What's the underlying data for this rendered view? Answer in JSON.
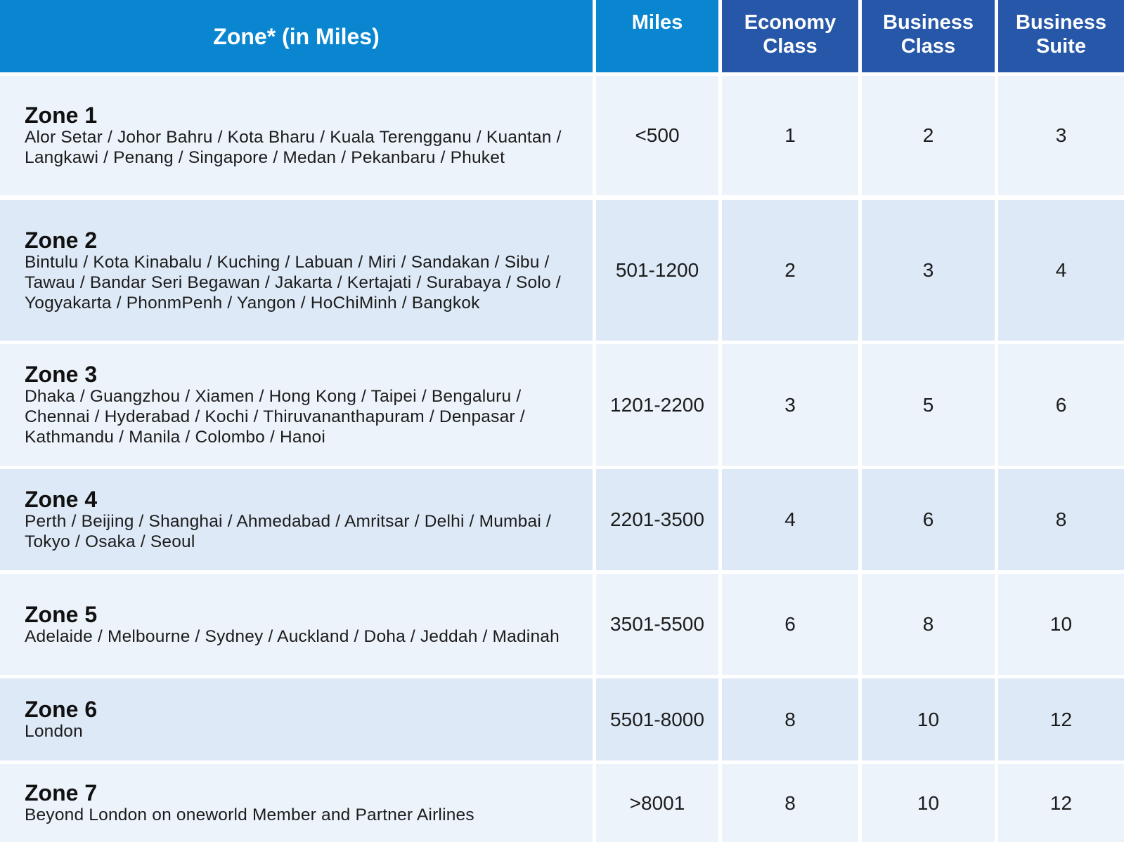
{
  "header": {
    "zone": "Zone* (in Miles)",
    "miles": "Miles",
    "economy": "Economy Class",
    "business_class": "Business Class",
    "business_suite": "Business Suite"
  },
  "rows": [
    {
      "zone": "Zone 1",
      "cities": "Alor Setar / Johor Bahru / Kota Bharu / Kuala Terengganu / Kuantan / Langkawi / Penang / Singapore / Medan / Pekanbaru / Phuket",
      "miles": "<500",
      "economy": "1",
      "business_class": "2",
      "business_suite": "3"
    },
    {
      "zone": "Zone 2",
      "cities": "Bintulu / Kota Kinabalu / Kuching / Labuan / Miri / Sandakan / Sibu / Tawau / Bandar Seri Begawan / Jakarta / Kertajati / Surabaya / Solo / Yogyakarta / PhonmPenh / Yangon / HoChiMinh / Bangkok",
      "miles": "501-1200",
      "economy": "2",
      "business_class": "3",
      "business_suite": "4"
    },
    {
      "zone": "Zone 3",
      "cities": "Dhaka / Guangzhou / Xiamen / Hong Kong / Taipei / Bengaluru / Chennai / Hyderabad / Kochi / Thiruvananthapuram / Denpasar / Kathmandu / Manila / Colombo / Hanoi",
      "miles": "1201-2200",
      "economy": "3",
      "business_class": "5",
      "business_suite": "6"
    },
    {
      "zone": "Zone 4",
      "cities": "Perth / Beijing / Shanghai / Ahmedabad / Amritsar / Delhi / Mumbai / Tokyo / Osaka / Seoul",
      "miles": "2201-3500",
      "economy": "4",
      "business_class": "6",
      "business_suite": "8"
    },
    {
      "zone": "Zone 5",
      "cities": "Adelaide / Melbourne / Sydney / Auckland / Doha / Jeddah / Madinah",
      "miles": "3501-5500",
      "economy": "6",
      "business_class": "8",
      "business_suite": "10"
    },
    {
      "zone": "Zone 6",
      "cities": "London",
      "miles": "5501-8000",
      "economy": "8",
      "business_class": "10",
      "business_suite": "12"
    },
    {
      "zone": "Zone 7",
      "cities": "Beyond London on oneworld Member and Partner Airlines",
      "miles": ">8001",
      "economy": "8",
      "business_class": "10",
      "business_suite": "12"
    }
  ],
  "colors": {
    "header_blue": "#0a86d1",
    "header_navy": "#2657a8",
    "row_light": "#ecf3fb",
    "row_dark": "#dde9f6"
  }
}
